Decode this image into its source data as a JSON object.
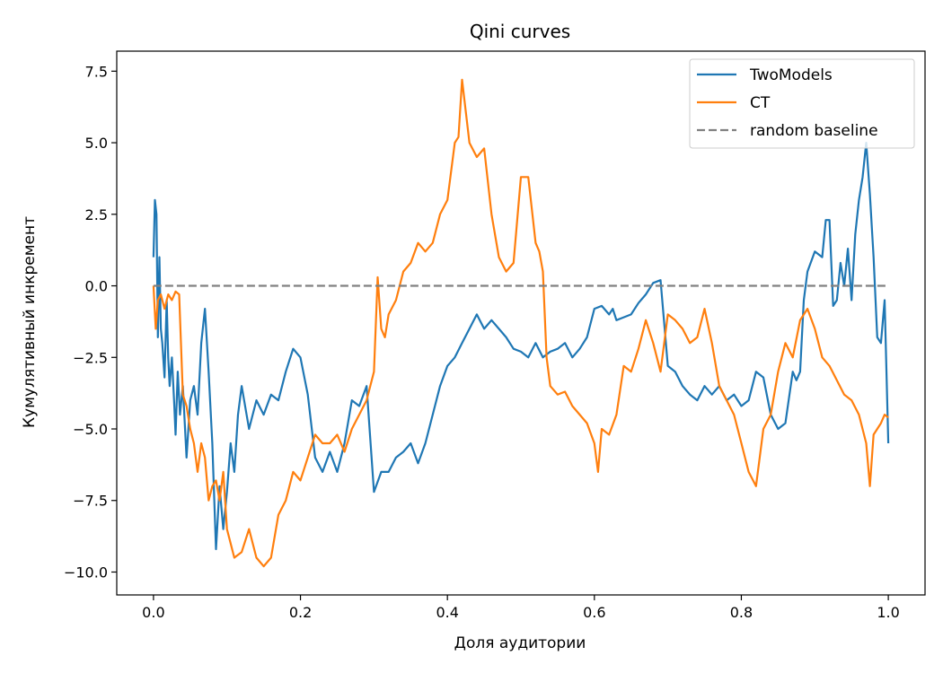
{
  "chart_data": {
    "type": "line",
    "title": "Qini curves",
    "xlabel": "Доля аудитории",
    "ylabel": "Кумулятивный инкремент",
    "xlim": [
      -0.05,
      1.05
    ],
    "ylim": [
      -10.8,
      8.2
    ],
    "xticks": [
      0.0,
      0.2,
      0.4,
      0.6,
      0.8,
      1.0
    ],
    "xtick_labels": [
      "0.0",
      "0.2",
      "0.4",
      "0.6",
      "0.8",
      "1.0"
    ],
    "yticks": [
      -10.0,
      -7.5,
      -5.0,
      -2.5,
      0.0,
      2.5,
      5.0,
      7.5
    ],
    "ytick_labels": [
      "−10.0",
      "−7.5",
      "−5.0",
      "−2.5",
      "0.0",
      "2.5",
      "5.0",
      "7.5"
    ],
    "grid": false,
    "legend_position": "top-right",
    "series": [
      {
        "name": "TwoModels",
        "color": "#1f77b4",
        "style": "solid",
        "x": [
          0.0,
          0.002,
          0.004,
          0.006,
          0.008,
          0.01,
          0.012,
          0.015,
          0.018,
          0.02,
          0.022,
          0.025,
          0.028,
          0.03,
          0.033,
          0.036,
          0.04,
          0.045,
          0.05,
          0.055,
          0.06,
          0.065,
          0.07,
          0.075,
          0.08,
          0.085,
          0.09,
          0.095,
          0.1,
          0.105,
          0.11,
          0.115,
          0.12,
          0.13,
          0.14,
          0.15,
          0.16,
          0.17,
          0.18,
          0.19,
          0.2,
          0.21,
          0.22,
          0.23,
          0.24,
          0.25,
          0.26,
          0.27,
          0.28,
          0.29,
          0.3,
          0.31,
          0.32,
          0.33,
          0.34,
          0.35,
          0.36,
          0.37,
          0.38,
          0.39,
          0.4,
          0.41,
          0.42,
          0.43,
          0.44,
          0.45,
          0.46,
          0.47,
          0.48,
          0.49,
          0.5,
          0.51,
          0.52,
          0.53,
          0.54,
          0.55,
          0.56,
          0.57,
          0.58,
          0.59,
          0.6,
          0.61,
          0.62,
          0.625,
          0.63,
          0.64,
          0.65,
          0.66,
          0.67,
          0.68,
          0.69,
          0.7,
          0.71,
          0.72,
          0.73,
          0.74,
          0.75,
          0.76,
          0.77,
          0.78,
          0.79,
          0.8,
          0.81,
          0.82,
          0.83,
          0.84,
          0.85,
          0.86,
          0.87,
          0.875,
          0.88,
          0.885,
          0.89,
          0.9,
          0.91,
          0.915,
          0.92,
          0.925,
          0.93,
          0.935,
          0.94,
          0.945,
          0.95,
          0.955,
          0.96,
          0.965,
          0.97,
          0.975,
          0.98,
          0.985,
          0.99,
          0.995,
          1.0
        ],
        "y": [
          1.0,
          3.0,
          2.5,
          -1.8,
          1.0,
          -1.5,
          -2.0,
          -3.2,
          -0.5,
          -2.5,
          -3.5,
          -2.5,
          -4.0,
          -5.2,
          -3.0,
          -4.5,
          -3.5,
          -6.0,
          -4.0,
          -3.5,
          -4.5,
          -2.0,
          -0.8,
          -3.0,
          -5.5,
          -9.2,
          -7.0,
          -8.5,
          -7.2,
          -5.5,
          -6.5,
          -4.5,
          -3.5,
          -5.0,
          -4.0,
          -4.5,
          -3.8,
          -4.0,
          -3.0,
          -2.2,
          -2.5,
          -3.8,
          -6.0,
          -6.5,
          -5.8,
          -6.5,
          -5.5,
          -4.0,
          -4.2,
          -3.5,
          -7.2,
          -6.5,
          -6.5,
          -6.0,
          -5.8,
          -5.5,
          -6.2,
          -5.5,
          -4.5,
          -3.5,
          -2.8,
          -2.5,
          -2.0,
          -1.5,
          -1.0,
          -1.5,
          -1.2,
          -1.5,
          -1.8,
          -2.2,
          -2.3,
          -2.5,
          -2.0,
          -2.5,
          -2.3,
          -2.2,
          -2.0,
          -2.5,
          -2.2,
          -1.8,
          -0.8,
          -0.7,
          -1.0,
          -0.8,
          -1.2,
          -1.1,
          -1.0,
          -0.6,
          -0.3,
          0.1,
          0.2,
          -2.8,
          -3.0,
          -3.5,
          -3.8,
          -4.0,
          -3.5,
          -3.8,
          -3.5,
          -4.0,
          -3.8,
          -4.2,
          -4.0,
          -3.0,
          -3.2,
          -4.5,
          -5.0,
          -4.8,
          -3.0,
          -3.3,
          -3.0,
          -0.5,
          0.5,
          1.2,
          1.0,
          2.3,
          2.3,
          -0.7,
          -0.5,
          0.8,
          0.0,
          1.3,
          -0.5,
          1.8,
          3.0,
          3.8,
          5.0,
          3.2,
          1.0,
          -1.8,
          -2.0,
          -0.5,
          -5.5
        ],
        "dasharray": ""
      },
      {
        "name": "CT",
        "color": "#ff7f0e",
        "style": "solid",
        "x": [
          0.0,
          0.003,
          0.006,
          0.01,
          0.015,
          0.02,
          0.025,
          0.03,
          0.035,
          0.04,
          0.045,
          0.05,
          0.055,
          0.06,
          0.065,
          0.07,
          0.075,
          0.08,
          0.085,
          0.09,
          0.095,
          0.1,
          0.11,
          0.12,
          0.13,
          0.14,
          0.15,
          0.16,
          0.17,
          0.18,
          0.19,
          0.2,
          0.21,
          0.22,
          0.23,
          0.24,
          0.25,
          0.26,
          0.27,
          0.28,
          0.29,
          0.3,
          0.305,
          0.31,
          0.315,
          0.32,
          0.33,
          0.34,
          0.35,
          0.36,
          0.37,
          0.38,
          0.39,
          0.4,
          0.41,
          0.415,
          0.42,
          0.43,
          0.44,
          0.45,
          0.46,
          0.47,
          0.48,
          0.49,
          0.5,
          0.51,
          0.52,
          0.525,
          0.53,
          0.535,
          0.54,
          0.55,
          0.56,
          0.57,
          0.58,
          0.59,
          0.6,
          0.605,
          0.61,
          0.62,
          0.63,
          0.64,
          0.65,
          0.66,
          0.67,
          0.68,
          0.69,
          0.7,
          0.71,
          0.72,
          0.73,
          0.74,
          0.75,
          0.76,
          0.77,
          0.78,
          0.79,
          0.8,
          0.81,
          0.82,
          0.83,
          0.84,
          0.85,
          0.86,
          0.87,
          0.88,
          0.89,
          0.9,
          0.91,
          0.92,
          0.93,
          0.94,
          0.95,
          0.96,
          0.97,
          0.975,
          0.98,
          0.985,
          0.99,
          0.995,
          1.0
        ],
        "y": [
          0.0,
          -1.5,
          -0.5,
          -0.3,
          -0.8,
          -0.3,
          -0.5,
          -0.2,
          -0.3,
          -3.8,
          -4.2,
          -5.0,
          -5.5,
          -6.5,
          -5.5,
          -6.0,
          -7.5,
          -7.0,
          -6.8,
          -7.5,
          -6.5,
          -8.5,
          -9.5,
          -9.3,
          -8.5,
          -9.5,
          -9.8,
          -9.5,
          -8.0,
          -7.5,
          -6.5,
          -6.8,
          -6.0,
          -5.2,
          -5.5,
          -5.5,
          -5.2,
          -5.8,
          -5.0,
          -4.5,
          -4.0,
          -3.0,
          0.3,
          -1.5,
          -1.8,
          -1.0,
          -0.5,
          0.5,
          0.8,
          1.5,
          1.2,
          1.5,
          2.5,
          3.0,
          5.0,
          5.2,
          7.2,
          5.0,
          4.5,
          4.8,
          2.5,
          1.0,
          0.5,
          0.8,
          3.8,
          3.8,
          1.5,
          1.2,
          0.5,
          -2.5,
          -3.5,
          -3.8,
          -3.7,
          -4.2,
          -4.5,
          -4.8,
          -5.5,
          -6.5,
          -5.0,
          -5.2,
          -4.5,
          -2.8,
          -3.0,
          -2.2,
          -1.2,
          -2.0,
          -3.0,
          -1.0,
          -1.2,
          -1.5,
          -2.0,
          -1.8,
          -0.8,
          -2.0,
          -3.5,
          -4.0,
          -4.5,
          -5.5,
          -6.5,
          -7.0,
          -5.0,
          -4.5,
          -3.0,
          -2.0,
          -2.5,
          -1.2,
          -0.8,
          -1.5,
          -2.5,
          -2.8,
          -3.3,
          -3.8,
          -4.0,
          -4.5,
          -5.5,
          -7.0,
          -5.2,
          -5.0,
          -4.8,
          -4.5,
          -4.6
        ],
        "dasharray": ""
      },
      {
        "name": "random baseline",
        "color": "#808080",
        "style": "dashed",
        "x": [
          0.0,
          1.0
        ],
        "y": [
          0.0,
          0.0
        ],
        "dasharray": "9 4"
      }
    ]
  }
}
